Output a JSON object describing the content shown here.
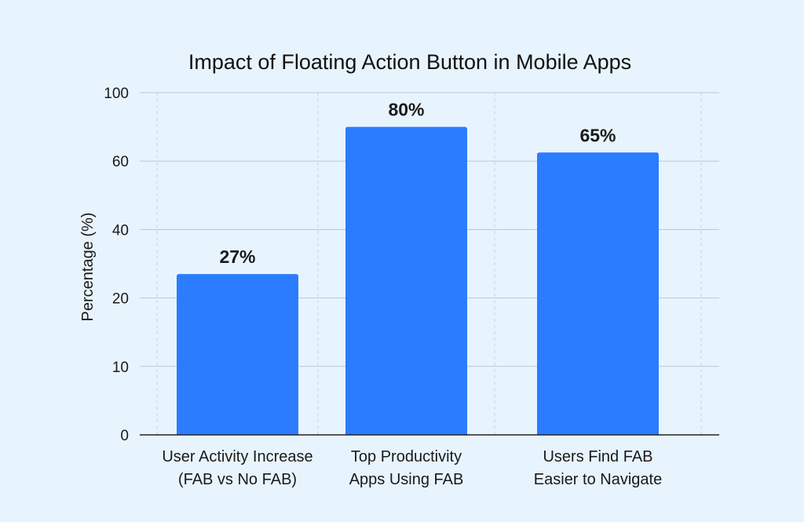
{
  "chart_data": {
    "type": "bar",
    "title": "Impact of Floating Action Button in Mobile Apps",
    "xlabel": "",
    "ylabel": "Percentage (%)",
    "categories": [
      [
        "User Activity Increase",
        "(FAB vs No FAB)"
      ],
      [
        "Top Productivity",
        "Apps Using FAB"
      ],
      [
        "Users Find FAB",
        "Easier to Navigate"
      ]
    ],
    "values": [
      27,
      80,
      65
    ],
    "value_labels": [
      "27%",
      "80%",
      "65%"
    ],
    "y_ticks": [
      0,
      10,
      20,
      40,
      60,
      100
    ],
    "y_tick_labels": [
      "0",
      "10",
      "20",
      "40",
      "60",
      "100"
    ],
    "y_scale": "non-uniform (ticks equally spaced)",
    "grid": {
      "horizontal": true,
      "vertical": "dashed"
    },
    "colors": {
      "bar": "#2b7cff",
      "background": "#e8f4fd",
      "grid": "#b6c9d6",
      "vgrid": "#c3d3de",
      "axis": "#222222"
    }
  }
}
